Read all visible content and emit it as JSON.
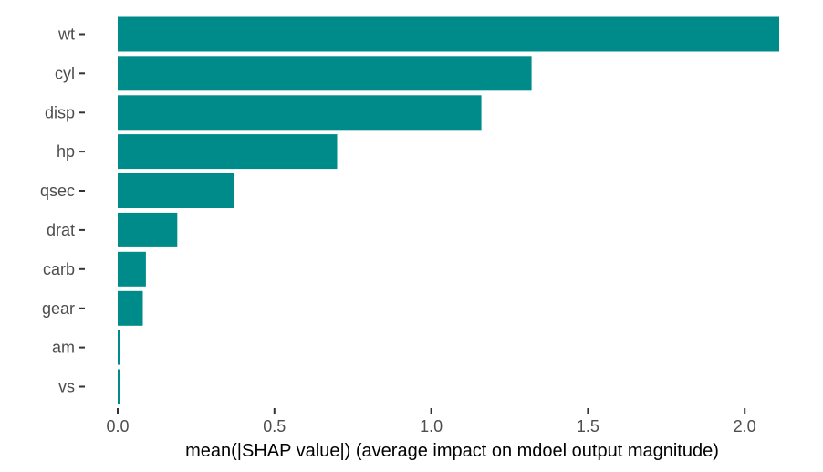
{
  "chart_data": {
    "type": "bar",
    "orientation": "horizontal",
    "categories": [
      "wt",
      "cyl",
      "disp",
      "hp",
      "qsec",
      "drat",
      "carb",
      "gear",
      "am",
      "vs"
    ],
    "values": [
      2.11,
      1.32,
      1.16,
      0.7,
      0.37,
      0.19,
      0.09,
      0.08,
      0.008,
      0.005
    ],
    "bar_color": "#008b8b",
    "title": "",
    "xlabel": "mean(|SHAP value|) (average impact on mdoel output magnitude)",
    "ylabel": "",
    "xlim": [
      0,
      2.11
    ],
    "x_ticks": [
      0.0,
      0.5,
      1.0,
      1.5,
      2.0
    ],
    "x_tick_labels": [
      "0.0",
      "0.5",
      "1.0",
      "1.5",
      "2.0"
    ],
    "grid": false,
    "legend": false
  }
}
